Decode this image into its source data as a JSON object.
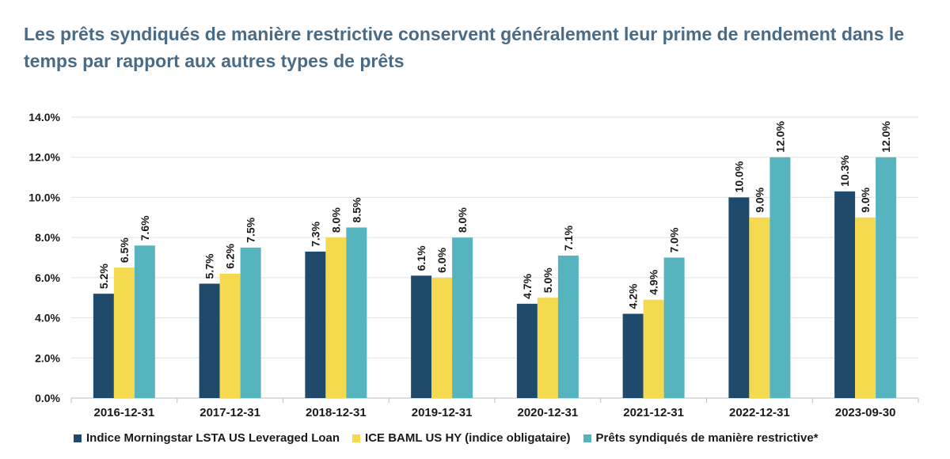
{
  "chart_data": {
    "type": "bar",
    "title": "Les prêts syndiqués de manière restrictive conservent généralement leur prime de rendement dans le temps par rapport aux autres types de prêts",
    "categories": [
      "2016-12-31",
      "2017-12-31",
      "2018-12-31",
      "2019-12-31",
      "2020-12-31",
      "2021-12-31",
      "2022-12-31",
      "2023-09-30"
    ],
    "series": [
      {
        "name": "Indice Morningstar LSTA US Leveraged Loan",
        "color": "#1f4a6b",
        "values": [
          5.2,
          5.7,
          7.3,
          6.1,
          4.7,
          4.2,
          10.0,
          10.3
        ],
        "labels": [
          "5.2%",
          "5.7%",
          "7.3%",
          "6.1%",
          "4.7%",
          "4.2%",
          "10.0%",
          "10.3%"
        ]
      },
      {
        "name": "ICE BAML US HY (indice obligataire)",
        "color": "#f5d94e",
        "values": [
          6.5,
          6.2,
          8.0,
          6.0,
          5.0,
          4.9,
          9.0,
          9.0
        ],
        "labels": [
          "6.5%",
          "6.2%",
          "8.0%",
          "6.0%",
          "5.0%",
          "4.9%",
          "9.0%",
          "9.0%"
        ]
      },
      {
        "name": "Prêts syndiqués de manière restrictive*",
        "color": "#56b4bf",
        "values": [
          7.6,
          7.5,
          8.5,
          8.0,
          7.1,
          7.0,
          12.0,
          12.0
        ],
        "labels": [
          "7.6%",
          "7.5%",
          "8.5%",
          "8.0%",
          "7.1%",
          "7.0%",
          "12.0%",
          "12.0%"
        ]
      }
    ],
    "ylim": [
      0,
      14
    ],
    "yticks": [
      0,
      2,
      4,
      6,
      8,
      10,
      12,
      14
    ],
    "ytick_labels": [
      "0.0%",
      "2.0%",
      "4.0%",
      "6.0%",
      "8.0%",
      "10.0%",
      "12.0%",
      "14.0%"
    ],
    "grid": true,
    "legend_position": "bottom"
  }
}
